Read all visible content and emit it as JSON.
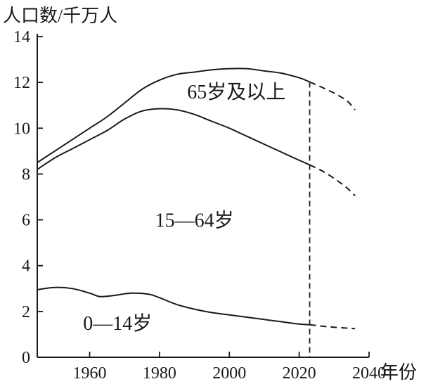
{
  "chart_data": {
    "type": "line",
    "ylabel": "人口数/千万人",
    "xlabel": "年份",
    "xlim": [
      1945,
      2040
    ],
    "ylim": [
      0,
      14
    ],
    "xticks": [
      1960,
      1980,
      2000,
      2020,
      2040
    ],
    "yticks": [
      0,
      2,
      4,
      6,
      8,
      10,
      12,
      14
    ],
    "divider_year": 2023,
    "band_labels": [
      {
        "text": "65岁及以上",
        "x": 2002,
        "y": 11.3
      },
      {
        "text": "15—64岁",
        "x": 1990,
        "y": 5.7
      },
      {
        "text": "0—14岁",
        "x": 1968,
        "y": 1.2
      }
    ],
    "series": [
      {
        "key": "total",
        "points": [
          [
            1945,
            8.5
          ],
          [
            1950,
            9.0
          ],
          [
            1955,
            9.5
          ],
          [
            1960,
            10.0
          ],
          [
            1965,
            10.5
          ],
          [
            1970,
            11.1
          ],
          [
            1975,
            11.7
          ],
          [
            1980,
            12.1
          ],
          [
            1985,
            12.35
          ],
          [
            1990,
            12.45
          ],
          [
            1995,
            12.55
          ],
          [
            2000,
            12.6
          ],
          [
            2005,
            12.6
          ],
          [
            2010,
            12.5
          ],
          [
            2015,
            12.4
          ],
          [
            2020,
            12.2
          ],
          [
            2023,
            12.02
          ]
        ],
        "projected": [
          [
            2023,
            12.02
          ],
          [
            2027,
            11.75
          ],
          [
            2031,
            11.45
          ],
          [
            2034,
            11.15
          ],
          [
            2036,
            10.8
          ]
        ]
      },
      {
        "key": "under65",
        "points": [
          [
            1945,
            8.2
          ],
          [
            1950,
            8.7
          ],
          [
            1955,
            9.1
          ],
          [
            1960,
            9.5
          ],
          [
            1965,
            9.9
          ],
          [
            1970,
            10.4
          ],
          [
            1975,
            10.75
          ],
          [
            1980,
            10.85
          ],
          [
            1985,
            10.8
          ],
          [
            1990,
            10.6
          ],
          [
            1995,
            10.3
          ],
          [
            2000,
            10.0
          ],
          [
            2005,
            9.65
          ],
          [
            2010,
            9.3
          ],
          [
            2015,
            8.95
          ],
          [
            2020,
            8.6
          ],
          [
            2023,
            8.4
          ]
        ],
        "projected": [
          [
            2023,
            8.4
          ],
          [
            2027,
            8.1
          ],
          [
            2031,
            7.7
          ],
          [
            2034,
            7.35
          ],
          [
            2036,
            7.05
          ]
        ]
      },
      {
        "key": "under15",
        "points": [
          [
            1945,
            2.95
          ],
          [
            1950,
            3.05
          ],
          [
            1955,
            3.0
          ],
          [
            1960,
            2.8
          ],
          [
            1963,
            2.65
          ],
          [
            1967,
            2.7
          ],
          [
            1972,
            2.8
          ],
          [
            1977,
            2.75
          ],
          [
            1980,
            2.6
          ],
          [
            1985,
            2.3
          ],
          [
            1990,
            2.1
          ],
          [
            1995,
            1.95
          ],
          [
            2000,
            1.85
          ],
          [
            2005,
            1.75
          ],
          [
            2010,
            1.65
          ],
          [
            2015,
            1.55
          ],
          [
            2020,
            1.45
          ],
          [
            2023,
            1.42
          ]
        ],
        "projected": [
          [
            2023,
            1.42
          ],
          [
            2027,
            1.35
          ],
          [
            2031,
            1.3
          ],
          [
            2036,
            1.25
          ]
        ]
      }
    ]
  }
}
